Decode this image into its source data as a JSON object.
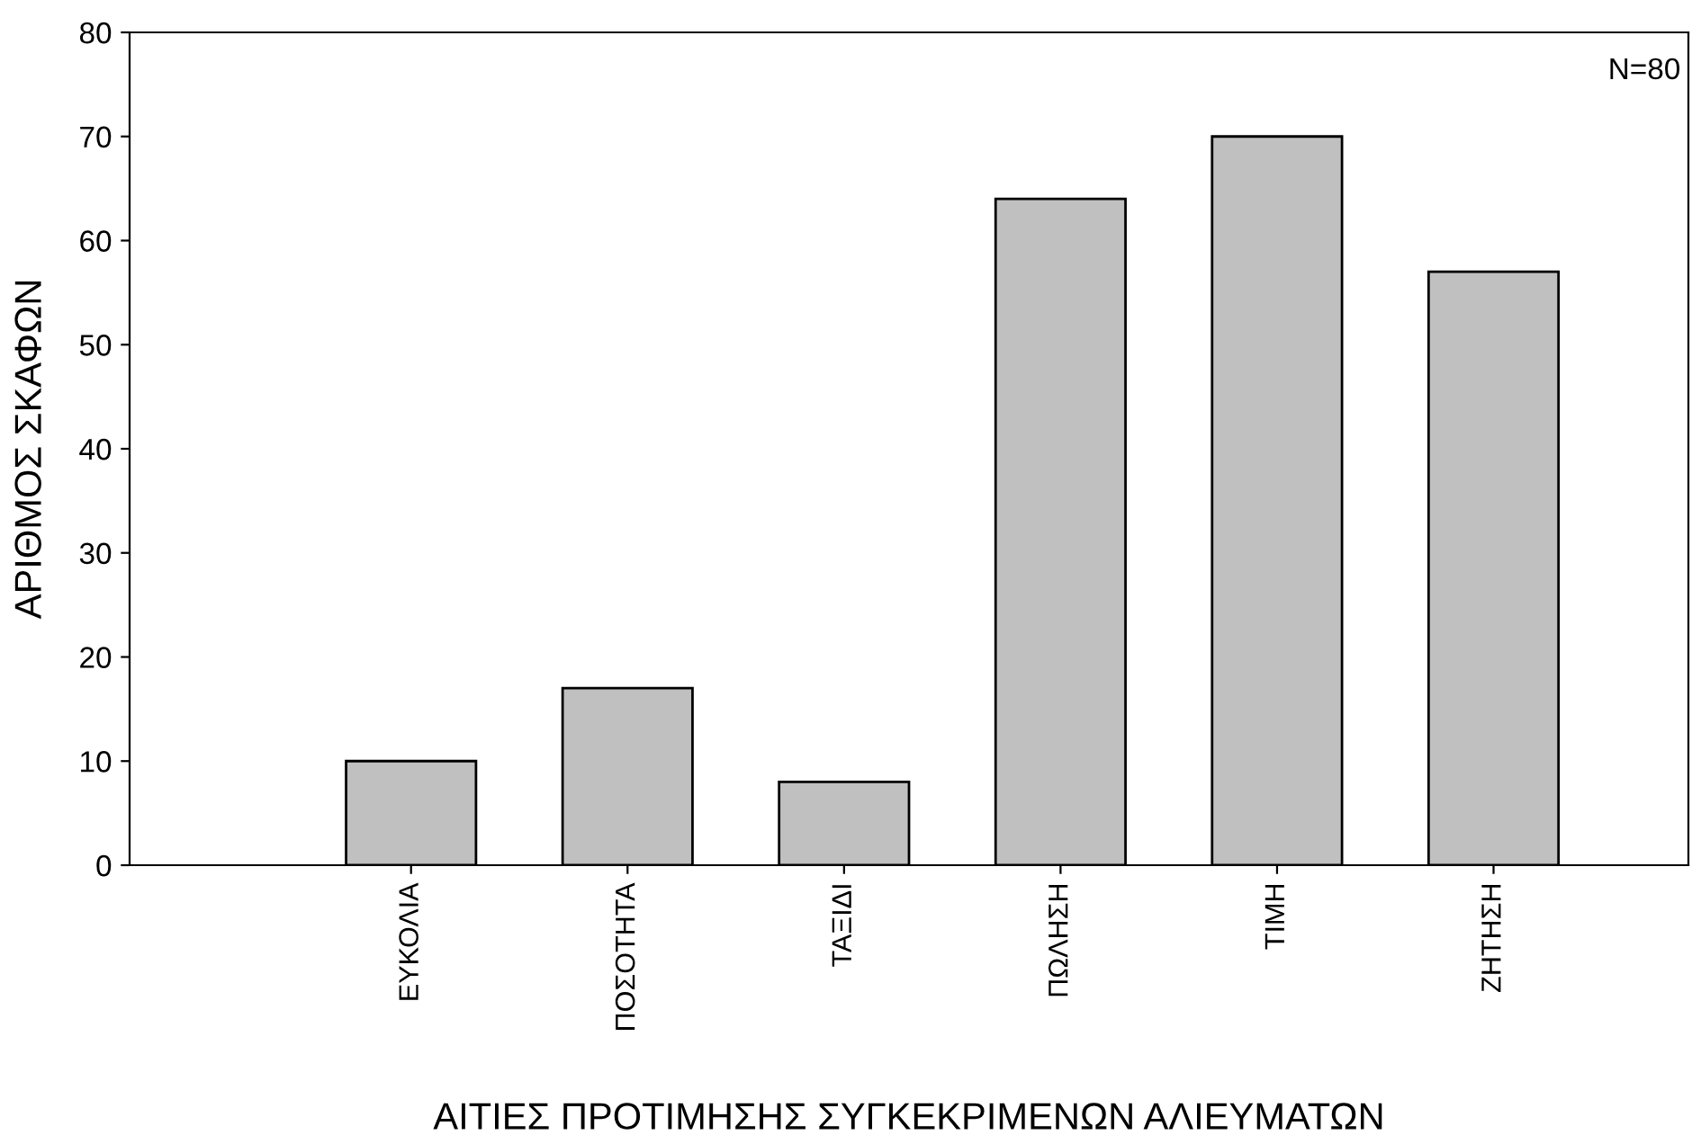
{
  "chart_data": {
    "type": "bar",
    "xlabel": "ΑΙΤΙΕΣ ΠΡΟΤΙΜΗΣΗΣ ΣΥΓΚΕΚΡΙΜΕΝΩΝ ΑΛΙΕΥΜΑΤΩΝ",
    "ylabel": "ΑΡΙΘΜΟΣ ΣΚΑΦΩΝ",
    "categories": [
      "ΕΥΚΟΛΙΑ",
      "ΠΟΣΟΤΗΤΑ",
      "ΤΑΞΙΔΙ",
      "ΠΩΛΗΣΗ",
      "ΤΙΜΗ",
      "ΖΗΤΗΣΗ"
    ],
    "values": [
      10,
      17,
      8,
      64,
      70,
      57
    ],
    "color": "#c0c0c0",
    "ylim": [
      0,
      80
    ],
    "yticks": [
      0,
      10,
      20,
      30,
      40,
      50,
      60,
      70,
      80
    ],
    "grid": false,
    "annotations": [
      "N=80"
    ]
  }
}
